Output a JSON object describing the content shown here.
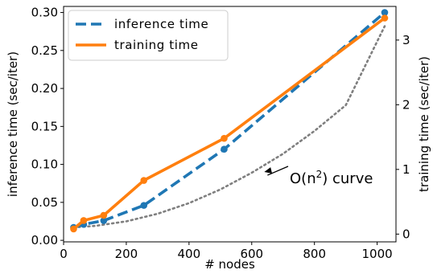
{
  "chart_data": {
    "type": "line",
    "xlabel": "# nodes",
    "ylabel_left": "inference time (sec/iter)",
    "ylabel_right": "training time (sec/iter)",
    "xlim": [
      0,
      1060
    ],
    "ylim_left": [
      -0.002,
      0.308
    ],
    "ylim_right": [
      -0.12,
      3.52
    ],
    "x_ticks": [
      0,
      200,
      400,
      600,
      800,
      1000
    ],
    "y_ticks_left": [
      0.0,
      0.05,
      0.1,
      0.15,
      0.2,
      0.25,
      0.3
    ],
    "y_ticks_right": [
      0,
      1,
      2,
      3
    ],
    "legend_position": "top-left",
    "grid": false,
    "series": [
      {
        "name": "inference time",
        "axis": "left",
        "style": "dashed",
        "color": "#1f77b4",
        "x": [
          32,
          64,
          128,
          256,
          512,
          1024
        ],
        "y": [
          0.017,
          0.021,
          0.026,
          0.046,
          0.12,
          0.3
        ]
      },
      {
        "name": "training time",
        "axis": "right",
        "style": "solid",
        "color": "#ff7f0e",
        "x": [
          32,
          64,
          128,
          256,
          512,
          1024
        ],
        "y": [
          0.08,
          0.21,
          0.29,
          0.83,
          1.48,
          3.34
        ]
      }
    ],
    "reference_curve": {
      "style": "dotted",
      "color": "#7f7f7f",
      "axis": "left",
      "x": [
        32,
        100,
        200,
        300,
        400,
        500,
        600,
        700,
        800,
        900,
        1024
      ],
      "y": [
        0.017,
        0.019,
        0.025,
        0.035,
        0.049,
        0.067,
        0.089,
        0.114,
        0.144,
        0.178,
        0.282
      ]
    },
    "annotations": [
      {
        "label_text": "O(n",
        "label_sup": "2",
        "label_tail": ") curve",
        "arrow_to": [
          640,
          0.09
        ]
      }
    ]
  }
}
